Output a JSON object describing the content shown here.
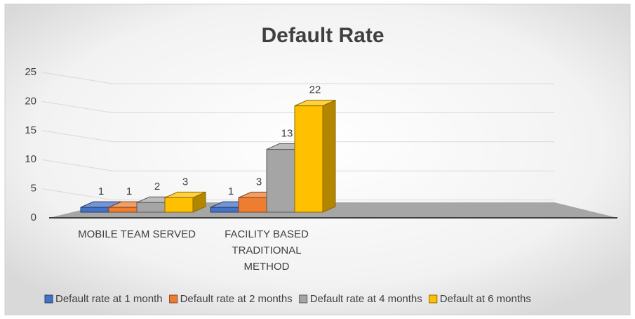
{
  "chart_data": {
    "type": "bar3d",
    "title": "Default Rate",
    "categories": [
      "MOBILE TEAM SERVED",
      "FACILITY BASED TRADITIONAL METHOD"
    ],
    "series": [
      {
        "name": "Default rate at 1 month",
        "color": "#4472c4",
        "values": [
          1,
          1
        ]
      },
      {
        "name": "Default rate at 2 months",
        "color": "#ed7d31",
        "values": [
          1,
          3
        ]
      },
      {
        "name": "Default rate at 4 months",
        "color": "#a5a5a5",
        "values": [
          2,
          13
        ]
      },
      {
        "name": "Default at 6 months",
        "color": "#ffc000",
        "values": [
          3,
          22
        ]
      }
    ],
    "ylim": [
      0,
      25
    ],
    "yticks": [
      0,
      5,
      10,
      15,
      20,
      25
    ],
    "grid": true,
    "legend": "bottom"
  }
}
